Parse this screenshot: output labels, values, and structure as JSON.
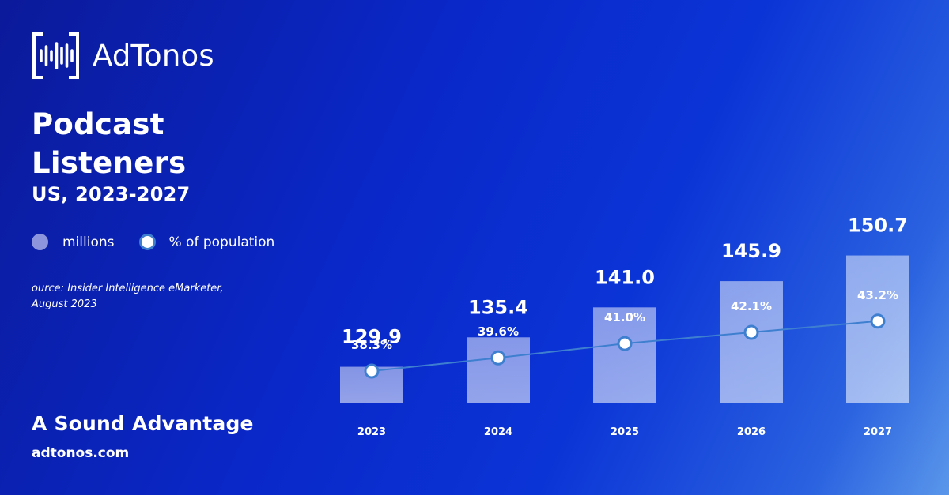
{
  "brand": {
    "name": "AdTonos"
  },
  "header": {
    "title_line1": "Podcast",
    "title_line2": "Listeners",
    "subtitle": "US, 2023-2027"
  },
  "legend": {
    "bars_label": "millions",
    "line_label": "% of population"
  },
  "source": {
    "line1": "ource: Insider Intelligence eMarketer,",
    "line2": "August 2023"
  },
  "footer": {
    "tagline": "A Sound Advantage",
    "website": "adtonos.com"
  },
  "colors": {
    "bar": "#a9b8f0",
    "line": "#3f7fd0",
    "marker_fill": "#ffffff"
  },
  "chart_data": {
    "type": "bar",
    "categories": [
      "2023",
      "2024",
      "2025",
      "2026",
      "2027"
    ],
    "series": [
      {
        "name": "millions",
        "type": "bar",
        "values": [
          129.9,
          135.4,
          141.0,
          145.9,
          150.7
        ]
      },
      {
        "name": "% of population",
        "type": "line",
        "values": [
          38.3,
          39.6,
          41.0,
          42.1,
          43.2
        ]
      }
    ],
    "bar_value_labels": [
      "129.9",
      "135.4",
      "141.0",
      "145.9",
      "150.7"
    ],
    "line_value_labels": [
      "38.3%",
      "39.6%",
      "41.0%",
      "42.1%",
      "43.2%"
    ],
    "grid": false
  }
}
